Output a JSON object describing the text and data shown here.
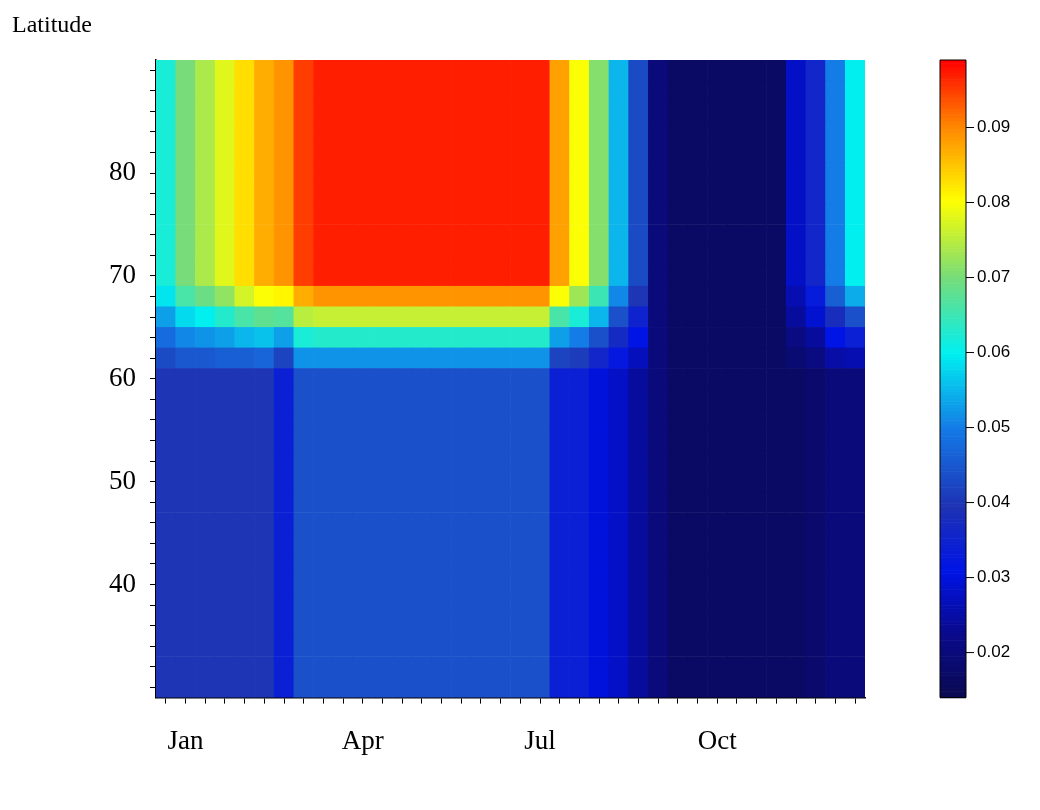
{
  "chart_data": {
    "type": "heatmap",
    "ylabel": "Latitude",
    "categories": [
      null,
      "Jan",
      null,
      null,
      null,
      null,
      null,
      null,
      null,
      null,
      "Apr",
      null,
      null,
      null,
      null,
      null,
      null,
      null,
      null,
      "Jul",
      null,
      null,
      null,
      null,
      null,
      null,
      null,
      null,
      "Oct",
      null,
      null,
      null,
      null,
      null,
      null,
      null
    ],
    "y_categories": [
      null,
      null,
      null,
      null,
      null,
      "80",
      null,
      null,
      null,
      null,
      "70",
      null,
      null,
      null,
      null,
      "60",
      null,
      null,
      null,
      null,
      "50",
      null,
      null,
      null,
      null,
      "40",
      null,
      null,
      null,
      null,
      null
    ],
    "cells": [
      [
        0.062,
        0.07,
        0.074,
        0.078,
        0.083,
        0.087,
        0.089,
        0.095,
        0.097,
        0.097,
        0.097,
        0.097,
        0.097,
        0.097,
        0.097,
        0.097,
        0.097,
        0.097,
        0.097,
        0.097,
        0.088,
        0.08,
        0.071,
        0.055,
        0.043,
        0.02,
        0.017,
        0.017,
        0.017,
        0.017,
        0.017,
        0.017,
        0.028,
        0.036,
        0.05,
        0.06
      ],
      [
        0.062,
        0.07,
        0.074,
        0.078,
        0.083,
        0.087,
        0.089,
        0.095,
        0.097,
        0.097,
        0.097,
        0.097,
        0.097,
        0.097,
        0.097,
        0.097,
        0.097,
        0.097,
        0.097,
        0.097,
        0.088,
        0.08,
        0.071,
        0.055,
        0.043,
        0.02,
        0.017,
        0.017,
        0.017,
        0.017,
        0.017,
        0.017,
        0.028,
        0.036,
        0.05,
        0.06
      ],
      [
        0.062,
        0.07,
        0.074,
        0.078,
        0.083,
        0.087,
        0.089,
        0.095,
        0.097,
        0.097,
        0.097,
        0.097,
        0.097,
        0.097,
        0.097,
        0.097,
        0.097,
        0.097,
        0.097,
        0.097,
        0.088,
        0.08,
        0.071,
        0.055,
        0.043,
        0.02,
        0.017,
        0.017,
        0.017,
        0.017,
        0.017,
        0.017,
        0.028,
        0.036,
        0.05,
        0.06
      ],
      [
        0.062,
        0.07,
        0.074,
        0.078,
        0.083,
        0.087,
        0.089,
        0.095,
        0.097,
        0.097,
        0.097,
        0.097,
        0.097,
        0.097,
        0.097,
        0.097,
        0.097,
        0.097,
        0.097,
        0.097,
        0.088,
        0.08,
        0.071,
        0.055,
        0.043,
        0.02,
        0.017,
        0.017,
        0.017,
        0.017,
        0.017,
        0.017,
        0.028,
        0.036,
        0.05,
        0.06
      ],
      [
        0.062,
        0.07,
        0.074,
        0.078,
        0.083,
        0.087,
        0.089,
        0.095,
        0.097,
        0.097,
        0.097,
        0.097,
        0.097,
        0.097,
        0.097,
        0.097,
        0.097,
        0.097,
        0.097,
        0.097,
        0.088,
        0.08,
        0.071,
        0.055,
        0.043,
        0.02,
        0.017,
        0.017,
        0.017,
        0.017,
        0.017,
        0.017,
        0.028,
        0.036,
        0.05,
        0.06
      ],
      [
        0.062,
        0.07,
        0.074,
        0.078,
        0.083,
        0.087,
        0.089,
        0.095,
        0.097,
        0.097,
        0.097,
        0.097,
        0.097,
        0.097,
        0.097,
        0.097,
        0.097,
        0.097,
        0.097,
        0.097,
        0.088,
        0.08,
        0.071,
        0.055,
        0.043,
        0.02,
        0.017,
        0.017,
        0.017,
        0.017,
        0.017,
        0.017,
        0.028,
        0.036,
        0.05,
        0.06
      ],
      [
        0.062,
        0.07,
        0.074,
        0.078,
        0.083,
        0.087,
        0.089,
        0.095,
        0.097,
        0.097,
        0.097,
        0.097,
        0.097,
        0.097,
        0.097,
        0.097,
        0.097,
        0.097,
        0.097,
        0.097,
        0.088,
        0.08,
        0.071,
        0.055,
        0.043,
        0.02,
        0.017,
        0.017,
        0.017,
        0.017,
        0.017,
        0.017,
        0.028,
        0.036,
        0.05,
        0.06
      ],
      [
        0.062,
        0.07,
        0.074,
        0.078,
        0.083,
        0.087,
        0.089,
        0.095,
        0.097,
        0.097,
        0.097,
        0.097,
        0.097,
        0.097,
        0.097,
        0.097,
        0.097,
        0.097,
        0.097,
        0.097,
        0.088,
        0.08,
        0.071,
        0.055,
        0.043,
        0.02,
        0.017,
        0.017,
        0.017,
        0.017,
        0.017,
        0.017,
        0.028,
        0.036,
        0.05,
        0.06
      ],
      [
        0.062,
        0.07,
        0.074,
        0.078,
        0.083,
        0.087,
        0.089,
        0.095,
        0.097,
        0.097,
        0.097,
        0.097,
        0.097,
        0.097,
        0.097,
        0.097,
        0.097,
        0.097,
        0.097,
        0.097,
        0.088,
        0.08,
        0.071,
        0.055,
        0.043,
        0.02,
        0.017,
        0.017,
        0.017,
        0.017,
        0.017,
        0.017,
        0.028,
        0.036,
        0.05,
        0.06
      ],
      [
        0.062,
        0.07,
        0.074,
        0.078,
        0.083,
        0.087,
        0.089,
        0.095,
        0.097,
        0.097,
        0.097,
        0.097,
        0.097,
        0.097,
        0.097,
        0.097,
        0.097,
        0.097,
        0.097,
        0.097,
        0.088,
        0.08,
        0.071,
        0.055,
        0.043,
        0.02,
        0.017,
        0.017,
        0.017,
        0.017,
        0.017,
        0.017,
        0.028,
        0.036,
        0.05,
        0.06
      ],
      [
        0.062,
        0.07,
        0.074,
        0.078,
        0.083,
        0.087,
        0.089,
        0.095,
        0.097,
        0.097,
        0.097,
        0.097,
        0.097,
        0.097,
        0.097,
        0.097,
        0.097,
        0.097,
        0.097,
        0.097,
        0.088,
        0.08,
        0.071,
        0.055,
        0.043,
        0.02,
        0.017,
        0.017,
        0.017,
        0.017,
        0.017,
        0.017,
        0.028,
        0.036,
        0.05,
        0.06
      ],
      [
        0.059,
        0.066,
        0.069,
        0.072,
        0.077,
        0.08,
        0.081,
        0.087,
        0.089,
        0.089,
        0.089,
        0.089,
        0.089,
        0.089,
        0.089,
        0.089,
        0.089,
        0.089,
        0.089,
        0.089,
        0.08,
        0.073,
        0.065,
        0.051,
        0.04,
        0.02,
        0.017,
        0.017,
        0.017,
        0.017,
        0.017,
        0.017,
        0.026,
        0.033,
        0.046,
        0.054
      ],
      [
        0.053,
        0.058,
        0.06,
        0.063,
        0.066,
        0.068,
        0.067,
        0.075,
        0.076,
        0.076,
        0.076,
        0.076,
        0.076,
        0.076,
        0.076,
        0.076,
        0.076,
        0.076,
        0.076,
        0.076,
        0.066,
        0.062,
        0.055,
        0.044,
        0.035,
        0.02,
        0.017,
        0.017,
        0.017,
        0.017,
        0.017,
        0.017,
        0.024,
        0.029,
        0.038,
        0.044
      ],
      [
        0.048,
        0.051,
        0.052,
        0.053,
        0.055,
        0.056,
        0.053,
        0.062,
        0.063,
        0.063,
        0.063,
        0.063,
        0.063,
        0.063,
        0.063,
        0.063,
        0.063,
        0.063,
        0.063,
        0.063,
        0.053,
        0.05,
        0.044,
        0.037,
        0.031,
        0.02,
        0.017,
        0.017,
        0.017,
        0.017,
        0.017,
        0.017,
        0.021,
        0.024,
        0.031,
        0.034
      ],
      [
        0.043,
        0.045,
        0.045,
        0.046,
        0.046,
        0.047,
        0.042,
        0.052,
        0.052,
        0.052,
        0.052,
        0.052,
        0.052,
        0.052,
        0.052,
        0.052,
        0.052,
        0.052,
        0.052,
        0.052,
        0.042,
        0.041,
        0.036,
        0.032,
        0.027,
        0.02,
        0.017,
        0.017,
        0.017,
        0.017,
        0.017,
        0.017,
        0.019,
        0.021,
        0.025,
        0.026
      ],
      [
        0.04,
        0.04,
        0.04,
        0.04,
        0.04,
        0.04,
        0.034,
        0.044,
        0.044,
        0.044,
        0.044,
        0.044,
        0.044,
        0.044,
        0.044,
        0.044,
        0.044,
        0.044,
        0.044,
        0.044,
        0.034,
        0.034,
        0.03,
        0.028,
        0.024,
        0.02,
        0.017,
        0.017,
        0.017,
        0.017,
        0.017,
        0.017,
        0.017,
        0.018,
        0.02,
        0.02
      ],
      [
        0.04,
        0.04,
        0.04,
        0.04,
        0.04,
        0.04,
        0.034,
        0.044,
        0.044,
        0.044,
        0.044,
        0.044,
        0.044,
        0.044,
        0.044,
        0.044,
        0.044,
        0.044,
        0.044,
        0.044,
        0.034,
        0.034,
        0.03,
        0.028,
        0.024,
        0.02,
        0.017,
        0.017,
        0.017,
        0.017,
        0.017,
        0.017,
        0.017,
        0.018,
        0.02,
        0.02
      ],
      [
        0.04,
        0.04,
        0.04,
        0.04,
        0.04,
        0.04,
        0.034,
        0.044,
        0.044,
        0.044,
        0.044,
        0.044,
        0.044,
        0.044,
        0.044,
        0.044,
        0.044,
        0.044,
        0.044,
        0.044,
        0.034,
        0.034,
        0.03,
        0.028,
        0.024,
        0.02,
        0.017,
        0.017,
        0.017,
        0.017,
        0.017,
        0.017,
        0.017,
        0.018,
        0.02,
        0.02
      ],
      [
        0.04,
        0.04,
        0.04,
        0.04,
        0.04,
        0.04,
        0.034,
        0.044,
        0.044,
        0.044,
        0.044,
        0.044,
        0.044,
        0.044,
        0.044,
        0.044,
        0.044,
        0.044,
        0.044,
        0.044,
        0.034,
        0.034,
        0.03,
        0.028,
        0.024,
        0.02,
        0.017,
        0.017,
        0.017,
        0.017,
        0.017,
        0.017,
        0.017,
        0.018,
        0.02,
        0.02
      ],
      [
        0.04,
        0.04,
        0.04,
        0.04,
        0.04,
        0.04,
        0.034,
        0.044,
        0.044,
        0.044,
        0.044,
        0.044,
        0.044,
        0.044,
        0.044,
        0.044,
        0.044,
        0.044,
        0.044,
        0.044,
        0.034,
        0.034,
        0.03,
        0.028,
        0.024,
        0.02,
        0.017,
        0.017,
        0.017,
        0.017,
        0.017,
        0.017,
        0.017,
        0.018,
        0.02,
        0.02
      ],
      [
        0.04,
        0.04,
        0.04,
        0.04,
        0.04,
        0.04,
        0.034,
        0.044,
        0.044,
        0.044,
        0.044,
        0.044,
        0.044,
        0.044,
        0.044,
        0.044,
        0.044,
        0.044,
        0.044,
        0.044,
        0.034,
        0.034,
        0.03,
        0.028,
        0.024,
        0.02,
        0.017,
        0.017,
        0.017,
        0.017,
        0.017,
        0.017,
        0.017,
        0.018,
        0.02,
        0.02
      ],
      [
        0.04,
        0.04,
        0.04,
        0.04,
        0.04,
        0.04,
        0.034,
        0.044,
        0.044,
        0.044,
        0.044,
        0.044,
        0.044,
        0.044,
        0.044,
        0.044,
        0.044,
        0.044,
        0.044,
        0.044,
        0.034,
        0.034,
        0.03,
        0.028,
        0.024,
        0.02,
        0.017,
        0.017,
        0.017,
        0.017,
        0.017,
        0.017,
        0.017,
        0.018,
        0.02,
        0.02
      ],
      [
        0.04,
        0.04,
        0.04,
        0.04,
        0.04,
        0.04,
        0.034,
        0.044,
        0.044,
        0.044,
        0.044,
        0.044,
        0.044,
        0.044,
        0.044,
        0.044,
        0.044,
        0.044,
        0.044,
        0.044,
        0.034,
        0.034,
        0.03,
        0.028,
        0.024,
        0.02,
        0.017,
        0.017,
        0.017,
        0.017,
        0.017,
        0.017,
        0.017,
        0.018,
        0.02,
        0.02
      ],
      [
        0.04,
        0.04,
        0.04,
        0.04,
        0.04,
        0.04,
        0.034,
        0.044,
        0.044,
        0.044,
        0.044,
        0.044,
        0.044,
        0.044,
        0.044,
        0.044,
        0.044,
        0.044,
        0.044,
        0.044,
        0.034,
        0.034,
        0.03,
        0.028,
        0.024,
        0.02,
        0.017,
        0.017,
        0.017,
        0.017,
        0.017,
        0.017,
        0.017,
        0.018,
        0.02,
        0.02
      ],
      [
        0.04,
        0.04,
        0.04,
        0.04,
        0.04,
        0.04,
        0.034,
        0.044,
        0.044,
        0.044,
        0.044,
        0.044,
        0.044,
        0.044,
        0.044,
        0.044,
        0.044,
        0.044,
        0.044,
        0.044,
        0.034,
        0.034,
        0.03,
        0.028,
        0.024,
        0.02,
        0.017,
        0.017,
        0.017,
        0.017,
        0.017,
        0.017,
        0.017,
        0.018,
        0.02,
        0.02
      ],
      [
        0.04,
        0.04,
        0.04,
        0.04,
        0.04,
        0.04,
        0.034,
        0.044,
        0.044,
        0.044,
        0.044,
        0.044,
        0.044,
        0.044,
        0.044,
        0.044,
        0.044,
        0.044,
        0.044,
        0.044,
        0.034,
        0.034,
        0.03,
        0.028,
        0.024,
        0.02,
        0.017,
        0.017,
        0.017,
        0.017,
        0.017,
        0.017,
        0.017,
        0.018,
        0.02,
        0.02
      ],
      [
        0.04,
        0.04,
        0.04,
        0.04,
        0.04,
        0.04,
        0.034,
        0.044,
        0.044,
        0.044,
        0.044,
        0.044,
        0.044,
        0.044,
        0.044,
        0.044,
        0.044,
        0.044,
        0.044,
        0.044,
        0.034,
        0.034,
        0.03,
        0.028,
        0.024,
        0.02,
        0.017,
        0.017,
        0.017,
        0.017,
        0.017,
        0.017,
        0.017,
        0.018,
        0.02,
        0.02
      ],
      [
        0.04,
        0.04,
        0.04,
        0.04,
        0.04,
        0.04,
        0.034,
        0.044,
        0.044,
        0.044,
        0.044,
        0.044,
        0.044,
        0.044,
        0.044,
        0.044,
        0.044,
        0.044,
        0.044,
        0.044,
        0.034,
        0.034,
        0.03,
        0.028,
        0.024,
        0.02,
        0.017,
        0.017,
        0.017,
        0.017,
        0.017,
        0.017,
        0.017,
        0.018,
        0.02,
        0.02
      ],
      [
        0.04,
        0.04,
        0.04,
        0.04,
        0.04,
        0.04,
        0.034,
        0.044,
        0.044,
        0.044,
        0.044,
        0.044,
        0.044,
        0.044,
        0.044,
        0.044,
        0.044,
        0.044,
        0.044,
        0.044,
        0.034,
        0.034,
        0.03,
        0.028,
        0.024,
        0.02,
        0.017,
        0.017,
        0.017,
        0.017,
        0.017,
        0.017,
        0.017,
        0.018,
        0.02,
        0.02
      ],
      [
        0.04,
        0.04,
        0.04,
        0.04,
        0.04,
        0.04,
        0.034,
        0.044,
        0.044,
        0.044,
        0.044,
        0.044,
        0.044,
        0.044,
        0.044,
        0.044,
        0.044,
        0.044,
        0.044,
        0.044,
        0.034,
        0.034,
        0.03,
        0.028,
        0.024,
        0.02,
        0.017,
        0.017,
        0.017,
        0.017,
        0.017,
        0.017,
        0.017,
        0.018,
        0.02,
        0.02
      ],
      [
        0.04,
        0.04,
        0.04,
        0.04,
        0.04,
        0.04,
        0.034,
        0.044,
        0.044,
        0.044,
        0.044,
        0.044,
        0.044,
        0.044,
        0.044,
        0.044,
        0.044,
        0.044,
        0.044,
        0.044,
        0.034,
        0.034,
        0.03,
        0.028,
        0.024,
        0.02,
        0.017,
        0.017,
        0.017,
        0.017,
        0.017,
        0.017,
        0.017,
        0.018,
        0.02,
        0.02
      ]
    ],
    "clim": [
      0.014,
      0.099
    ],
    "cticks": [
      0.02,
      0.03,
      0.04,
      0.05,
      0.06,
      0.07,
      0.08,
      0.09
    ]
  }
}
